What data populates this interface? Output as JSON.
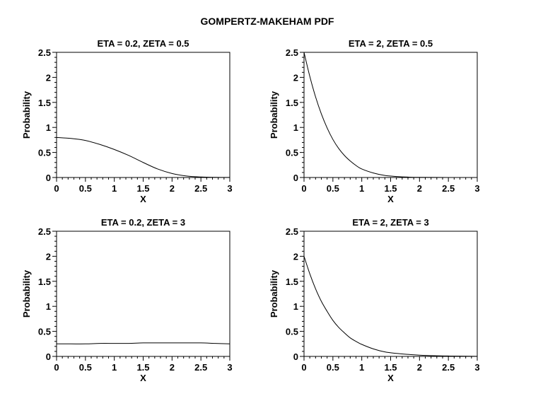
{
  "figure": {
    "title": "GOMPERTZ-MAKEHAM PDF"
  },
  "chart_data": [
    {
      "type": "line",
      "title": "ETA = 0.2, ZETA = 0.5",
      "xlabel": "X",
      "ylabel": "Probability",
      "xlim": [
        0,
        3
      ],
      "ylim": [
        0,
        2.5
      ],
      "xticks": [
        0,
        0.5,
        1,
        1.5,
        2,
        2.5,
        3
      ],
      "xtick_labels": [
        "0",
        "0.5",
        "1",
        "1.5",
        "2",
        "2.5",
        "3"
      ],
      "yticks": [
        0,
        0.5,
        1,
        1.5,
        2,
        2.5
      ],
      "ytick_labels": [
        "0",
        "0.5",
        "1",
        "1.5",
        "2",
        "2.5"
      ],
      "grid": false,
      "series": [
        {
          "x": [
            0,
            0.25,
            0.5,
            0.75,
            1,
            1.25,
            1.5,
            1.75,
            2,
            2.25,
            2.5,
            2.75,
            3
          ],
          "y": [
            0.8,
            0.78,
            0.74,
            0.66,
            0.56,
            0.44,
            0.3,
            0.17,
            0.08,
            0.03,
            0.01,
            0.003,
            0.001
          ]
        }
      ]
    },
    {
      "type": "line",
      "title": "ETA = 2, ZETA = 0.5",
      "xlabel": "X",
      "ylabel": "Probability",
      "xlim": [
        0,
        3
      ],
      "ylim": [
        0,
        2.5
      ],
      "xticks": [
        0,
        0.5,
        1,
        1.5,
        2,
        2.5,
        3
      ],
      "xtick_labels": [
        "0",
        "0.5",
        "1",
        "1.5",
        "2",
        "2.5",
        "3"
      ],
      "yticks": [
        0,
        0.5,
        1,
        1.5,
        2,
        2.5
      ],
      "ytick_labels": [
        "0",
        "0.5",
        "1",
        "1.5",
        "2",
        "2.5"
      ],
      "grid": false,
      "series": [
        {
          "x": [
            0,
            0.1,
            0.2,
            0.3,
            0.4,
            0.5,
            0.6,
            0.7,
            0.8,
            0.9,
            1,
            1.2,
            1.4,
            1.6,
            1.8,
            2,
            2.5,
            3
          ],
          "y": [
            2.5,
            2.02,
            1.61,
            1.27,
            0.99,
            0.76,
            0.58,
            0.44,
            0.33,
            0.24,
            0.17,
            0.09,
            0.04,
            0.02,
            0.008,
            0.003,
            0.0005,
            0.0001
          ]
        }
      ]
    },
    {
      "type": "line",
      "title": "ETA = 0.2, ZETA = 3",
      "xlabel": "X",
      "ylabel": "Probability",
      "xlim": [
        0,
        3
      ],
      "ylim": [
        0,
        2.5
      ],
      "xticks": [
        0,
        0.5,
        1,
        1.5,
        2,
        2.5,
        3
      ],
      "xtick_labels": [
        "0",
        "0.5",
        "1",
        "1.5",
        "2",
        "2.5",
        "3"
      ],
      "yticks": [
        0,
        0.5,
        1,
        1.5,
        2,
        2.5
      ],
      "ytick_labels": [
        "0",
        "0.5",
        "1",
        "1.5",
        "2",
        "2.5"
      ],
      "grid": false,
      "series": [
        {
          "x": [
            0,
            0.25,
            0.5,
            0.75,
            1,
            1.25,
            1.5,
            1.75,
            2,
            2.25,
            2.5,
            2.75,
            3
          ],
          "y": [
            0.25,
            0.25,
            0.25,
            0.26,
            0.26,
            0.26,
            0.27,
            0.27,
            0.27,
            0.27,
            0.27,
            0.26,
            0.25
          ]
        }
      ]
    },
    {
      "type": "line",
      "title": "ETA = 2, ZETA = 3",
      "xlabel": "X",
      "ylabel": "Probability",
      "xlim": [
        0,
        3
      ],
      "ylim": [
        0,
        2.5
      ],
      "xticks": [
        0,
        0.5,
        1,
        1.5,
        2,
        2.5,
        3
      ],
      "xtick_labels": [
        "0",
        "0.5",
        "1",
        "1.5",
        "2",
        "2.5",
        "3"
      ],
      "yticks": [
        0,
        0.5,
        1,
        1.5,
        2,
        2.5
      ],
      "ytick_labels": [
        "0",
        "0.5",
        "1",
        "1.5",
        "2",
        "2.5"
      ],
      "grid": false,
      "series": [
        {
          "x": [
            0,
            0.1,
            0.2,
            0.3,
            0.4,
            0.5,
            0.6,
            0.7,
            0.8,
            0.9,
            1,
            1.2,
            1.4,
            1.6,
            1.8,
            2,
            2.25,
            2.5,
            3
          ],
          "y": [
            2.0,
            1.65,
            1.35,
            1.1,
            0.9,
            0.72,
            0.58,
            0.47,
            0.37,
            0.3,
            0.24,
            0.15,
            0.09,
            0.06,
            0.04,
            0.025,
            0.014,
            0.008,
            0.002
          ]
        }
      ]
    }
  ]
}
